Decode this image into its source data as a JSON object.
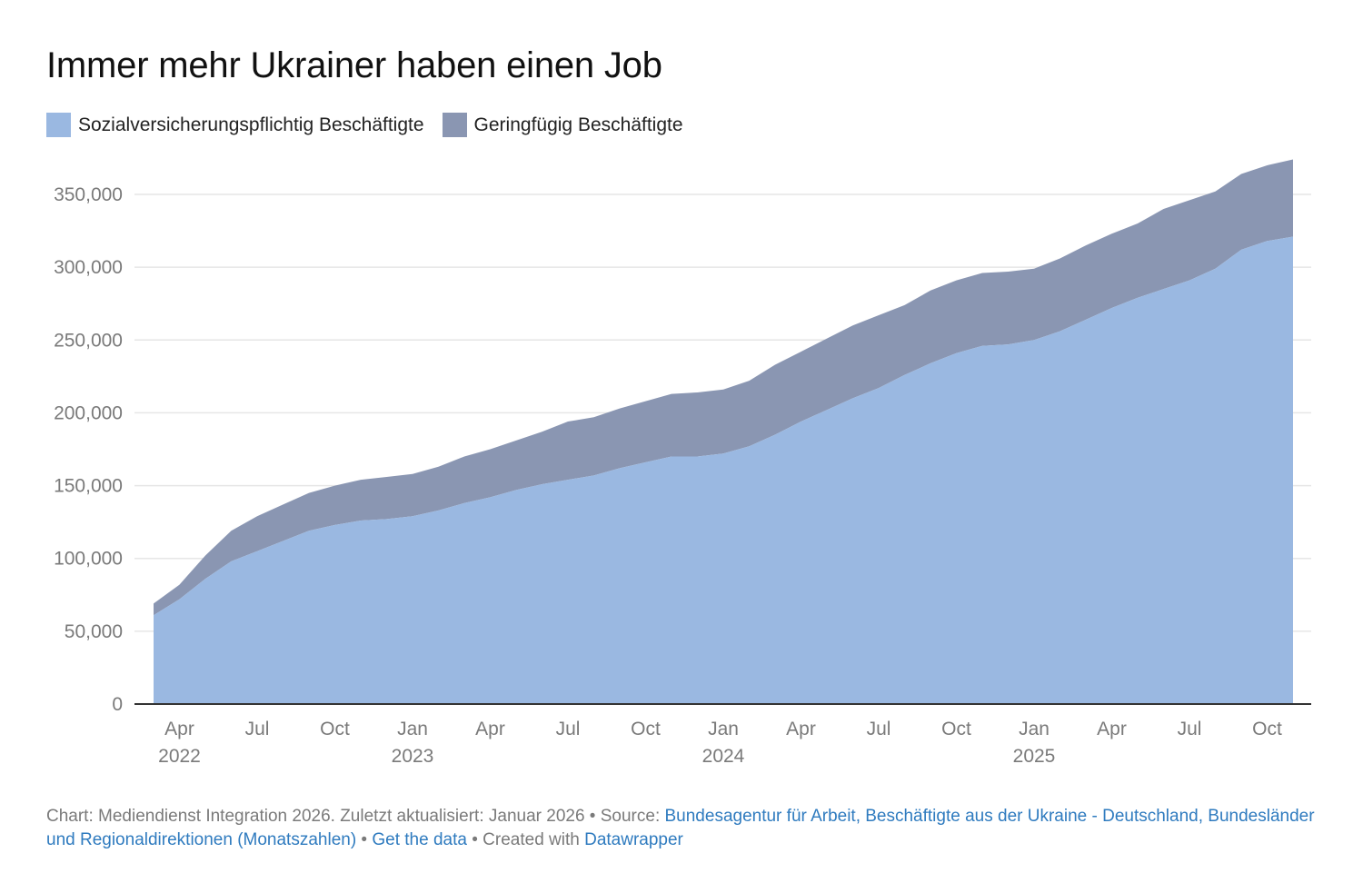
{
  "header": {
    "title": "Immer mehr Ukrainer haben einen Job"
  },
  "colors": {
    "svp": "#9ab8e1",
    "gering": "#8a96b2",
    "gridline": "#e6e6e6",
    "axis": "#333333",
    "link": "#2f7bbf"
  },
  "footer": {
    "chart_text": "Chart: Mediendienst Integration 2026. Zuletzt aktualisiert: Januar 2026",
    "source_prefix": " • Source: ",
    "source_link": "Bundesagentur für Arbeit, Beschäftigte aus der Ukraine - Deutschland, Bundesländer und Regionaldirektionen (Monatszahlen)",
    "sep1": " • ",
    "get_data": "Get the data",
    "created_prefix": " • Created with ",
    "datawrapper": "Datawrapper"
  },
  "chart_data": {
    "type": "area",
    "stacked": true,
    "title": "Immer mehr Ukrainer haben einen Job",
    "xlabel": "",
    "ylabel": "",
    "ylim": [
      0,
      375000
    ],
    "yticks": [
      0,
      50000,
      100000,
      150000,
      200000,
      250000,
      300000,
      350000
    ],
    "ytick_labels": [
      "0",
      "50,000",
      "100,000",
      "150,000",
      "200,000",
      "250,000",
      "300,000",
      "350,000"
    ],
    "xticks": [
      {
        "month": "Apr",
        "year": "2022",
        "date": "2022-04"
      },
      {
        "month": "Jul",
        "year": "",
        "date": "2022-07"
      },
      {
        "month": "Oct",
        "year": "",
        "date": "2022-10"
      },
      {
        "month": "Jan",
        "year": "2023",
        "date": "2023-01"
      },
      {
        "month": "Apr",
        "year": "",
        "date": "2023-04"
      },
      {
        "month": "Jul",
        "year": "",
        "date": "2023-07"
      },
      {
        "month": "Oct",
        "year": "",
        "date": "2023-10"
      },
      {
        "month": "Jan",
        "year": "2024",
        "date": "2024-01"
      },
      {
        "month": "Apr",
        "year": "",
        "date": "2024-04"
      },
      {
        "month": "Jul",
        "year": "",
        "date": "2024-07"
      },
      {
        "month": "Oct",
        "year": "",
        "date": "2024-10"
      },
      {
        "month": "Jan",
        "year": "2025",
        "date": "2025-01"
      },
      {
        "month": "Apr",
        "year": "",
        "date": "2025-04"
      },
      {
        "month": "Jul",
        "year": "",
        "date": "2025-07"
      },
      {
        "month": "Oct",
        "year": "",
        "date": "2025-10"
      }
    ],
    "x": [
      "2022-03",
      "2022-04",
      "2022-05",
      "2022-06",
      "2022-07",
      "2022-08",
      "2022-09",
      "2022-10",
      "2022-11",
      "2022-12",
      "2023-01",
      "2023-02",
      "2023-03",
      "2023-04",
      "2023-05",
      "2023-06",
      "2023-07",
      "2023-08",
      "2023-09",
      "2023-10",
      "2023-11",
      "2023-12",
      "2024-01",
      "2024-02",
      "2024-03",
      "2024-04",
      "2024-05",
      "2024-06",
      "2024-07",
      "2024-08",
      "2024-09",
      "2024-10",
      "2024-11",
      "2024-12",
      "2025-01",
      "2025-02",
      "2025-03",
      "2025-04",
      "2025-05",
      "2025-06",
      "2025-07",
      "2025-08",
      "2025-09",
      "2025-10",
      "2025-11"
    ],
    "series": [
      {
        "name": "Sozialversicherungspflichtig Beschäftigte",
        "values": [
          61000,
          72000,
          86000,
          98000,
          105000,
          112000,
          119000,
          123000,
          126000,
          127000,
          129000,
          133000,
          138000,
          142000,
          147000,
          151000,
          154000,
          157000,
          162000,
          166000,
          170000,
          170000,
          172000,
          177000,
          185000,
          194000,
          202000,
          210000,
          217000,
          226000,
          234000,
          241000,
          246000,
          247000,
          250000,
          256000,
          264000,
          272000,
          279000,
          285000,
          291000,
          299000,
          312000,
          318000,
          321000
        ]
      },
      {
        "name": "Geringfügig Beschäftigte",
        "values": [
          8000,
          10000,
          16000,
          21000,
          24000,
          25000,
          26000,
          27000,
          28000,
          29000,
          29000,
          30000,
          32000,
          33000,
          34000,
          36000,
          40000,
          40000,
          41000,
          42000,
          43000,
          44000,
          44000,
          45000,
          48000,
          48000,
          49000,
          50000,
          50000,
          48000,
          50000,
          50000,
          50000,
          50000,
          49000,
          50000,
          51000,
          51000,
          51000,
          55000,
          55000,
          53000,
          52000,
          52000,
          53000
        ]
      }
    ]
  }
}
